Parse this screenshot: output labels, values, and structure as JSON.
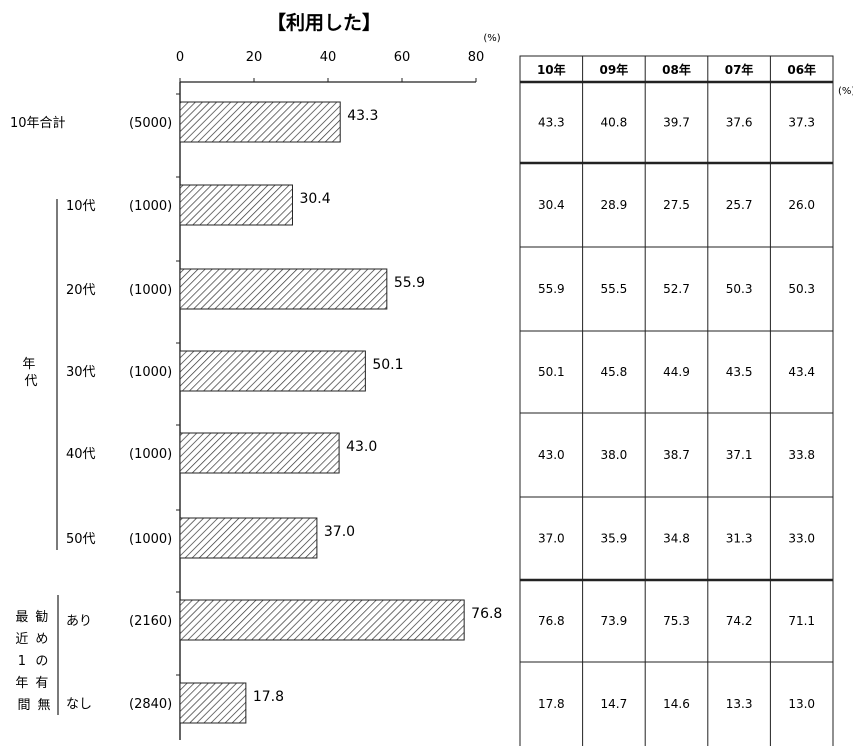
{
  "chart_data": {
    "type": "bar",
    "orientation": "horizontal",
    "title": "【利用した】",
    "unit": "(%)",
    "xlim": [
      0,
      80
    ],
    "ticks": [
      0,
      20,
      40,
      60,
      80
    ],
    "groups": {
      "age": "年代",
      "recent": "最近1年間",
      "recent_sub": "勧めの有無"
    },
    "rows": [
      {
        "label": "10年合計",
        "n": "(5000)",
        "value": 43.3,
        "history": [
          43.3,
          40.8,
          39.7,
          37.6,
          37.3
        ]
      },
      {
        "label": "10代",
        "n": "(1000)",
        "value": 30.4,
        "history": [
          30.4,
          28.9,
          27.5,
          25.7,
          26.0
        ]
      },
      {
        "label": "20代",
        "n": "(1000)",
        "value": 55.9,
        "history": [
          55.9,
          55.5,
          52.7,
          50.3,
          50.3
        ]
      },
      {
        "label": "30代",
        "n": "(1000)",
        "value": 50.1,
        "history": [
          50.1,
          45.8,
          44.9,
          43.5,
          43.4
        ]
      },
      {
        "label": "40代",
        "n": "(1000)",
        "value": 43.0,
        "history": [
          43.0,
          38.0,
          38.7,
          37.1,
          33.8
        ]
      },
      {
        "label": "50代",
        "n": "(1000)",
        "value": 37.0,
        "history": [
          37.0,
          35.9,
          34.8,
          31.3,
          33.0
        ]
      },
      {
        "label": "あり",
        "n": "(2160)",
        "value": 76.8,
        "history": [
          76.8,
          73.9,
          75.3,
          74.2,
          71.1
        ]
      },
      {
        "label": "なし",
        "n": "(2840)",
        "value": 17.8,
        "history": [
          17.8,
          14.7,
          14.6,
          13.3,
          13.0
        ]
      }
    ],
    "table": {
      "headers": [
        "10年",
        "09年",
        "08年",
        "07年",
        "06年"
      ],
      "unit": "(%)"
    }
  }
}
